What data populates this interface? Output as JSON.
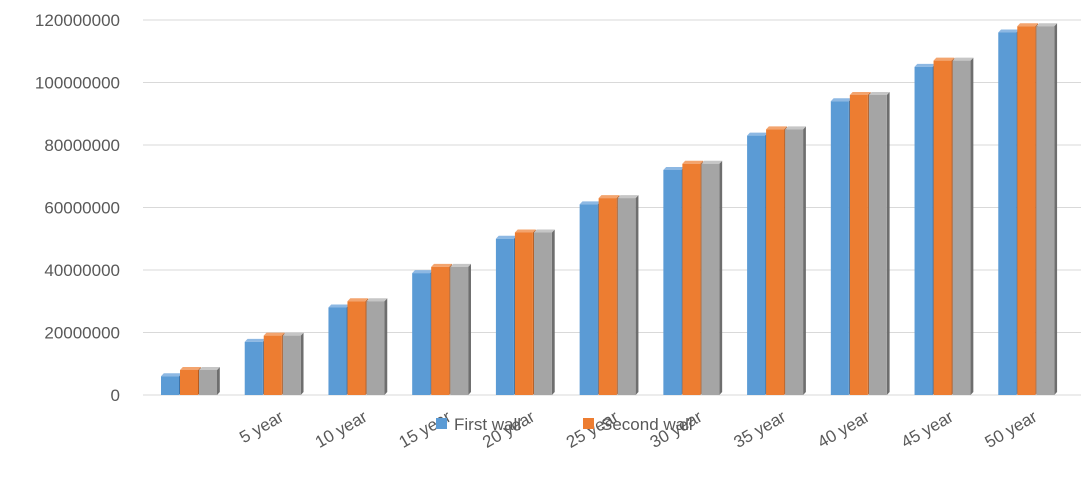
{
  "chart_data": {
    "type": "bar",
    "style": "3d-clustered-column",
    "categories": [
      "",
      "5 year",
      "10 year",
      "15 year",
      "20 year",
      "25 year",
      "30 year",
      "35 year",
      "40 year",
      "45 year",
      "50 year"
    ],
    "series": [
      {
        "name": "First wall",
        "color": "#5b9bd5",
        "side": "#3f73a6",
        "top": "#8db8e3",
        "values": [
          6000000,
          17000000,
          28000000,
          39000000,
          50000000,
          61000000,
          72000000,
          83000000,
          94000000,
          105000000,
          116000000
        ]
      },
      {
        "name": "Second wall",
        "color": "#ed7d31",
        "side": "#b65b1f",
        "top": "#f3a46e",
        "values": [
          8000000,
          19000000,
          30000000,
          41000000,
          52000000,
          63000000,
          74000000,
          85000000,
          96000000,
          107000000,
          118000000
        ]
      },
      {
        "name": "",
        "color": "#a5a5a5",
        "side": "#6e6e6e",
        "top": "#c6c6c6",
        "values": [
          8000000,
          19000000,
          30000000,
          41000000,
          52000000,
          63000000,
          74000000,
          85000000,
          96000000,
          107000000,
          118000000
        ]
      }
    ],
    "yticks": [
      "0",
      "20000000",
      "40000000",
      "60000000",
      "80000000",
      "100000000",
      "120000000"
    ],
    "ylim": [
      0,
      120000000
    ],
    "grid": true,
    "legend": {
      "position": "bottom-center",
      "entries": [
        "First wall",
        "Second wall"
      ]
    }
  }
}
